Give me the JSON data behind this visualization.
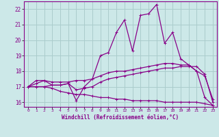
{
  "xlabel": "Windchill (Refroidissement éolien,°C)",
  "xlim": [
    -0.5,
    23.5
  ],
  "ylim": [
    15.7,
    22.5
  ],
  "xticks": [
    0,
    1,
    2,
    3,
    4,
    5,
    6,
    7,
    8,
    9,
    10,
    11,
    12,
    13,
    14,
    15,
    16,
    17,
    18,
    19,
    20,
    21,
    22,
    23
  ],
  "yticks": [
    16,
    17,
    18,
    19,
    20,
    21,
    22
  ],
  "bg_color": "#cce8e8",
  "grid_color": "#aacccc",
  "line_color": "#880088",
  "line1_y": [
    17.0,
    17.4,
    17.4,
    17.1,
    17.1,
    17.2,
    16.1,
    17.0,
    17.5,
    19.0,
    19.2,
    20.5,
    21.3,
    19.3,
    21.6,
    21.7,
    22.3,
    19.8,
    20.5,
    18.8,
    18.4,
    18.0,
    16.3,
    15.8
  ],
  "line2_y": [
    17.0,
    17.0,
    17.0,
    17.1,
    17.1,
    17.2,
    16.8,
    16.9,
    17.0,
    17.3,
    17.5,
    17.6,
    17.7,
    17.8,
    17.9,
    18.0,
    18.1,
    18.2,
    18.2,
    18.3,
    18.3,
    18.3,
    17.8,
    16.0
  ],
  "line3_y": [
    17.0,
    17.0,
    17.0,
    16.9,
    16.7,
    16.6,
    16.5,
    16.5,
    16.4,
    16.3,
    16.3,
    16.2,
    16.2,
    16.1,
    16.1,
    16.1,
    16.1,
    16.0,
    16.0,
    16.0,
    16.0,
    16.0,
    15.9,
    15.8
  ],
  "line4_y": [
    17.0,
    17.2,
    17.4,
    17.3,
    17.3,
    17.3,
    17.4,
    17.4,
    17.5,
    17.7,
    17.9,
    18.0,
    18.0,
    18.1,
    18.2,
    18.3,
    18.4,
    18.5,
    18.5,
    18.4,
    18.4,
    18.0,
    17.7,
    16.2
  ]
}
